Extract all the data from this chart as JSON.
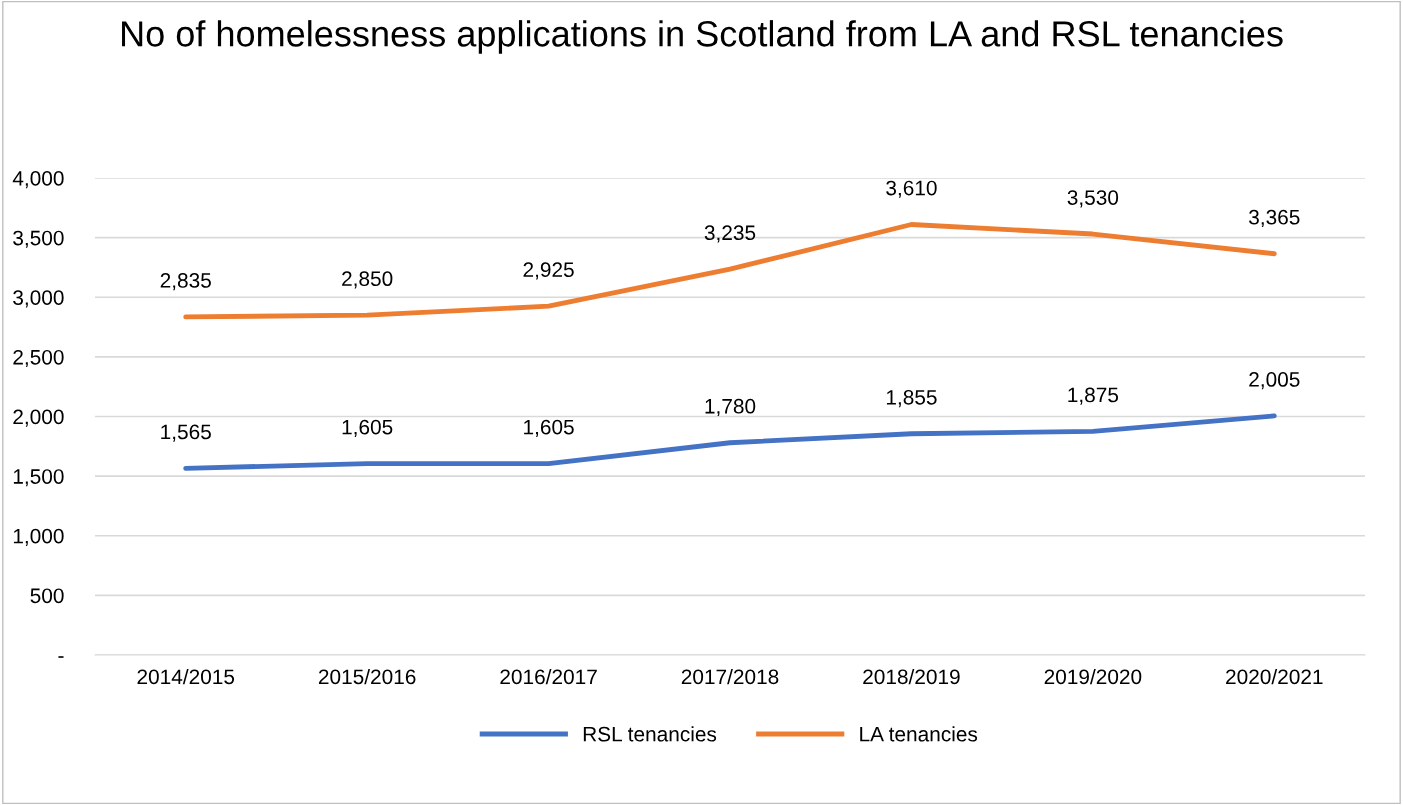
{
  "chart_data": {
    "type": "line",
    "title": "No of homelessness applications in Scotland from LA and RSL tenancies",
    "categories": [
      "2014/2015",
      "2015/2016",
      "2016/2017",
      "2017/2018",
      "2018/2019",
      "2019/2020",
      "2020/2021"
    ],
    "series": [
      {
        "name": "RSL tenancies",
        "color": "#4472c4",
        "values": [
          1565,
          1605,
          1605,
          1780,
          1855,
          1875,
          2005
        ],
        "value_labels": [
          "1,565",
          "1,605",
          "1,605",
          "1,780",
          "1,855",
          "1,875",
          "2,005"
        ]
      },
      {
        "name": "LA tenancies",
        "color": "#ed7d31",
        "values": [
          2835,
          2850,
          2925,
          3235,
          3610,
          3530,
          3365
        ],
        "value_labels": [
          "2,835",
          "2,850",
          "2,925",
          "3,235",
          "3,610",
          "3,530",
          "3,365"
        ]
      }
    ],
    "ylim": [
      0,
      4000
    ],
    "yticks": [
      {
        "value": 0,
        "label": "-"
      },
      500,
      {
        "value": 1000,
        "label": "1,000"
      },
      {
        "value": 1500,
        "label": "1,500"
      },
      {
        "value": 2000,
        "label": "2,000"
      },
      {
        "value": 2500,
        "label": "2,500"
      },
      {
        "value": 3000,
        "label": "3,000"
      },
      {
        "value": 3500,
        "label": "3,500"
      },
      {
        "value": 4000,
        "label": "4,000"
      }
    ],
    "grid": "y",
    "legend": "bottom",
    "marker": "none",
    "line_style": "solid"
  }
}
